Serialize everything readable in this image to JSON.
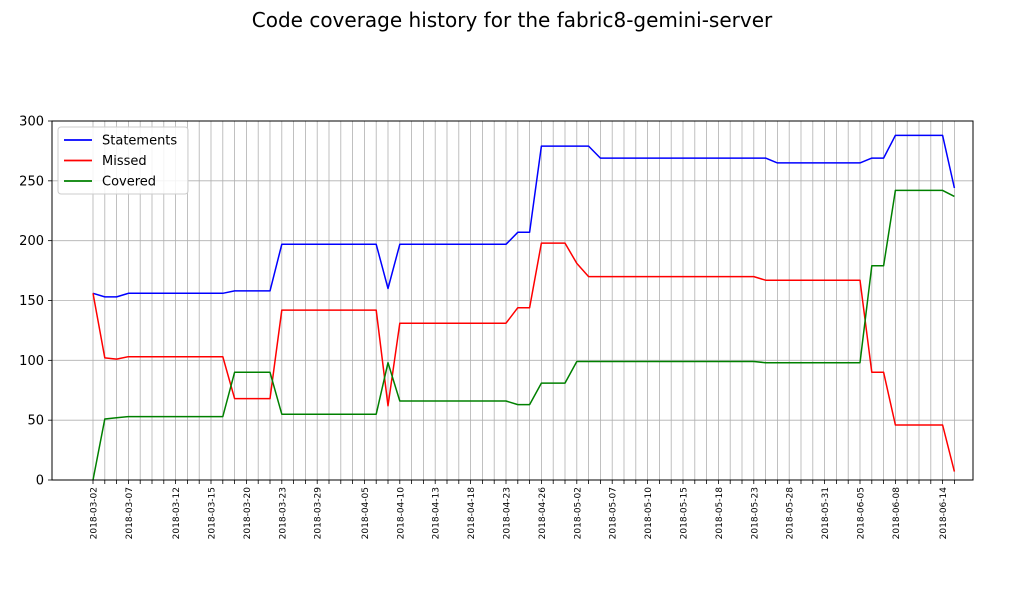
{
  "chart_data": {
    "type": "line",
    "title": "Code coverage history for the fabric8-gemini-server",
    "xlabel": "",
    "ylabel": "",
    "ylim": [
      0,
      300
    ],
    "yticks": [
      0,
      50,
      100,
      150,
      200,
      250,
      300
    ],
    "grid": true,
    "legend_position": "top-left",
    "x": [
      "2018-03-02",
      "2018-03-05",
      "2018-03-06",
      "2018-03-07",
      "2018-03-08",
      "2018-03-09",
      "2018-03-10",
      "2018-03-12",
      "2018-03-13",
      "2018-03-14",
      "2018-03-15",
      "2018-03-16",
      "2018-03-19",
      "2018-03-20",
      "2018-03-21",
      "2018-03-22",
      "2018-03-23",
      "2018-03-27",
      "2018-03-28",
      "2018-03-29",
      "2018-03-30",
      "2018-04-03",
      "2018-04-04",
      "2018-04-05",
      "2018-04-06",
      "2018-04-09",
      "2018-04-10",
      "2018-04-11",
      "2018-04-12",
      "2018-04-13",
      "2018-04-16",
      "2018-04-17",
      "2018-04-18",
      "2018-04-19",
      "2018-04-20",
      "2018-04-23",
      "2018-04-24",
      "2018-04-25",
      "2018-04-26",
      "2018-04-27",
      "2018-04-30",
      "2018-05-02",
      "2018-05-03",
      "2018-05-04",
      "2018-05-07",
      "2018-05-08",
      "2018-05-09",
      "2018-05-10",
      "2018-05-11",
      "2018-05-14",
      "2018-05-15",
      "2018-05-16",
      "2018-05-17",
      "2018-05-18",
      "2018-05-21",
      "2018-05-22",
      "2018-05-23",
      "2018-05-24",
      "2018-05-25",
      "2018-05-28",
      "2018-05-29",
      "2018-05-30",
      "2018-05-31",
      "2018-06-01",
      "2018-06-04",
      "2018-06-05",
      "2018-06-06",
      "2018-06-07",
      "2018-06-08",
      "2018-06-11",
      "2018-06-12",
      "2018-06-13",
      "2018-06-14",
      "2018-06-15"
    ],
    "tick_labels": [
      "2018-03-02",
      "2018-03-07",
      "2018-03-12",
      "2018-03-15",
      "2018-03-20",
      "2018-03-23",
      "2018-03-29",
      "2018-04-05",
      "2018-04-10",
      "2018-04-13",
      "2018-04-18",
      "2018-04-23",
      "2018-04-26",
      "2018-05-02",
      "2018-05-07",
      "2018-05-10",
      "2018-05-15",
      "2018-05-18",
      "2018-05-23",
      "2018-05-28",
      "2018-05-31",
      "2018-06-05",
      "2018-06-08",
      "2018-06-14"
    ],
    "tick_label_indices": [
      0,
      3,
      7,
      10,
      13,
      16,
      19,
      23,
      26,
      29,
      32,
      35,
      38,
      41,
      44,
      47,
      50,
      53,
      56,
      59,
      62,
      65,
      68,
      72
    ],
    "series": [
      {
        "name": "Statements",
        "color": "#0000ff",
        "values": [
          156,
          153,
          153,
          156,
          156,
          156,
          156,
          156,
          156,
          156,
          156,
          156,
          158,
          158,
          158,
          158,
          197,
          197,
          197,
          197,
          197,
          197,
          197,
          197,
          197,
          160,
          197,
          197,
          197,
          197,
          197,
          197,
          197,
          197,
          197,
          197,
          207,
          207,
          279,
          279,
          279,
          279,
          279,
          269,
          269,
          269,
          269,
          269,
          269,
          269,
          269,
          269,
          269,
          269,
          269,
          269,
          269,
          269,
          265,
          265,
          265,
          265,
          265,
          265,
          265,
          265,
          269,
          269,
          288,
          288,
          288,
          288,
          288,
          244
        ]
      },
      {
        "name": "Missed",
        "color": "#ff0000",
        "values": [
          156,
          102,
          101,
          103,
          103,
          103,
          103,
          103,
          103,
          103,
          103,
          103,
          68,
          68,
          68,
          68,
          142,
          142,
          142,
          142,
          142,
          142,
          142,
          142,
          142,
          62,
          131,
          131,
          131,
          131,
          131,
          131,
          131,
          131,
          131,
          131,
          144,
          144,
          198,
          198,
          198,
          181,
          170,
          170,
          170,
          170,
          170,
          170,
          170,
          170,
          170,
          170,
          170,
          170,
          170,
          170,
          170,
          167,
          167,
          167,
          167,
          167,
          167,
          167,
          167,
          167,
          90,
          90,
          46,
          46,
          46,
          46,
          46,
          7
        ]
      },
      {
        "name": "Covered",
        "color": "#008000",
        "values": [
          0,
          51,
          52,
          53,
          53,
          53,
          53,
          53,
          53,
          53,
          53,
          53,
          90,
          90,
          90,
          90,
          55,
          55,
          55,
          55,
          55,
          55,
          55,
          55,
          55,
          98,
          66,
          66,
          66,
          66,
          66,
          66,
          66,
          66,
          66,
          66,
          63,
          63,
          81,
          81,
          81,
          99,
          99,
          99,
          99,
          99,
          99,
          99,
          99,
          99,
          99,
          99,
          99,
          99,
          99,
          99,
          99,
          98,
          98,
          98,
          98,
          98,
          98,
          98,
          98,
          98,
          179,
          179,
          242,
          242,
          242,
          242,
          242,
          237
        ]
      }
    ]
  }
}
